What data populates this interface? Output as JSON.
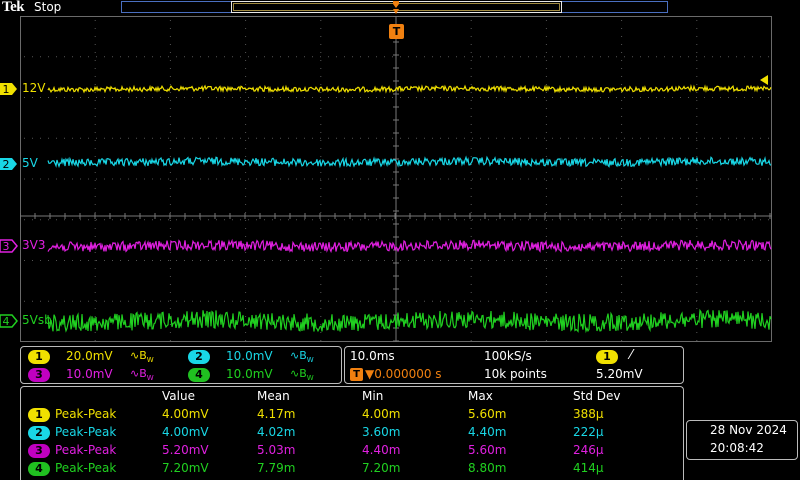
{
  "header": {
    "brand": "Tek",
    "status": "Stop"
  },
  "channels": [
    {
      "id": "1",
      "label": "12V",
      "color": "#f0e000"
    },
    {
      "id": "2",
      "label": "5V",
      "color": "#19d7e6"
    },
    {
      "id": "3",
      "label": "3V3",
      "color": "#e020e0"
    },
    {
      "id": "4",
      "label": "5Vsb",
      "color": "#20d020"
    }
  ],
  "trigger_marker": "T",
  "vertical": [
    {
      "id": "1",
      "scale": "20.0mV",
      "bw": "∿B",
      "bw_sub": "W"
    },
    {
      "id": "2",
      "scale": "10.0mV",
      "bw": "∿B",
      "bw_sub": "W"
    },
    {
      "id": "3",
      "scale": "10.0mV",
      "bw": "∿B",
      "bw_sub": "W"
    },
    {
      "id": "4",
      "scale": "10.0mV",
      "bw": "∿B",
      "bw_sub": "W"
    }
  ],
  "horizontal": {
    "timebase": "10.0ms",
    "sample_rate": "100kS/s",
    "trigger_pos": "▼0.000000 s",
    "record_length": "10k points",
    "trigger_source": "1",
    "trigger_slope": "⁄",
    "trigger_level": "5.20mV"
  },
  "measurements": {
    "headers": [
      "Value",
      "Mean",
      "Min",
      "Max",
      "Std Dev"
    ],
    "rows": [
      {
        "ch": "1",
        "name": "Peak-Peak",
        "value": "4.00mV",
        "mean": "4.17m",
        "min": "4.00m",
        "max": "5.60m",
        "std": "388μ"
      },
      {
        "ch": "2",
        "name": "Peak-Peak",
        "value": "4.00mV",
        "mean": "4.02m",
        "min": "3.60m",
        "max": "4.40m",
        "std": "222μ"
      },
      {
        "ch": "3",
        "name": "Peak-Peak",
        "value": "5.20mV",
        "mean": "5.03m",
        "min": "4.40m",
        "max": "5.60m",
        "std": "246μ"
      },
      {
        "ch": "4",
        "name": "Peak-Peak",
        "value": "7.20mV",
        "mean": "7.79m",
        "min": "7.20m",
        "max": "8.80m",
        "std": "414μ"
      }
    ]
  },
  "datetime": {
    "date": "28 Nov 2024",
    "time": "20:08:42"
  }
}
